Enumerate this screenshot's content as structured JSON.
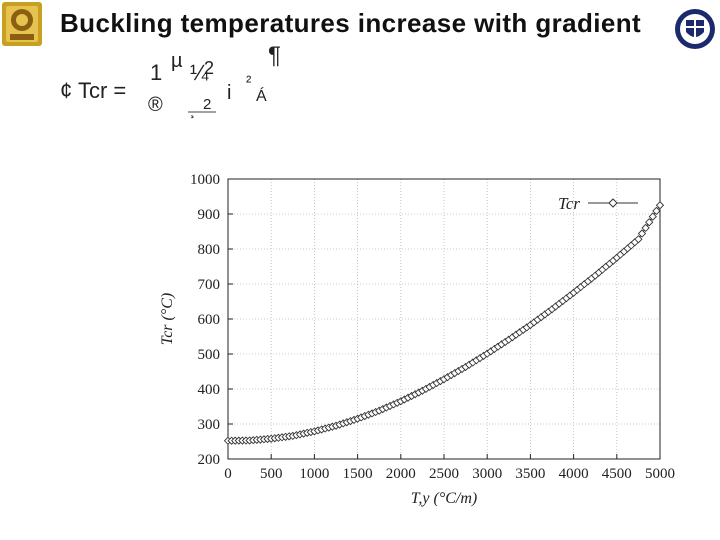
{
  "slide": {
    "title": "Buckling temperatures increase with gradient"
  },
  "equation": {
    "lhs": "¢ Tcr =",
    "g1": "1",
    "g2": "µ",
    "g3": "¼",
    "g4": "2",
    "g5": "¶",
    "g6": "®",
    "g7": "2",
    "g8": "¸",
    "g9": "i",
    "g10": "²",
    "g11": "Á"
  },
  "logos": {
    "left": "university-crest-icon",
    "right": "edinburgh-crest-icon",
    "left_color": "#c8a020",
    "right_color": "#1a2a6c"
  },
  "chart_data": {
    "type": "line",
    "xlabel": "T,y (°C/m)",
    "ylabel": "Tcr (°C)",
    "xlim": [
      0,
      5000
    ],
    "ylim": [
      200,
      1000
    ],
    "xticks": [
      0,
      500,
      1000,
      1500,
      2000,
      2500,
      3000,
      3500,
      4000,
      4500,
      5000
    ],
    "yticks": [
      200,
      300,
      400,
      500,
      600,
      700,
      800,
      900,
      1000
    ],
    "grid": true,
    "legend": "top-right",
    "marker": "diamond",
    "series": [
      {
        "name": "Tcr",
        "color": "#333333",
        "x": [
          0,
          250,
          500,
          750,
          1000,
          1250,
          1500,
          1750,
          2000,
          2250,
          2500,
          2750,
          3000,
          3250,
          3500,
          3750,
          4000,
          4250,
          4500,
          4750,
          5000
        ],
        "y": [
          252,
          253,
          258,
          266,
          279,
          295,
          315,
          338,
          365,
          395,
          428,
          463,
          501,
          541,
          583,
          628,
          675,
          724,
          775,
          828,
          925
        ]
      }
    ]
  }
}
